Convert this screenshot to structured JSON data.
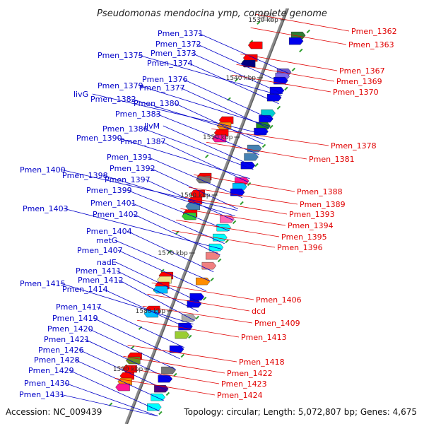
{
  "title": "Pseudomonas mendocina ymp, complete genome",
  "footer": {
    "accession": "Accession: NC_009439",
    "topology": "Topology: circular; Length: 5,072,807 bp; Genes: 4,675"
  },
  "colors": {
    "background": "#ffffff",
    "backbone": "#8a8a8a",
    "left_label": "#0000c8",
    "right_label": "#e00000",
    "forward_gene": "#0000ee",
    "reverse_gene": "#ee0000",
    "intergenic_marker": "#2e9e2e"
  },
  "axis_ticks": [
    "1530 kbp",
    "1540 kbp",
    "1550 kbp",
    "1560 kbp",
    "1570 kbp",
    "1580 kbp",
    "1590 kbp"
  ],
  "left_genes": [
    "Pmen_1371",
    "Pmen_1372",
    "Pmen_1375",
    "Pmen_1373",
    "Pmen_1374",
    "Pmen_1376",
    "Pmen_1379",
    "Pmen_1377",
    "livG",
    "Pmen_1382",
    "Pmen_1380",
    "Pmen_1383",
    "livM",
    "Pmen_1386",
    "Pmen_1390",
    "Pmen_1387",
    "Pmen_1391",
    "Pmen_1392",
    "Pmen_1400",
    "Pmen_1398",
    "Pmen_1397",
    "Pmen_1399",
    "Pmen_1401",
    "Pmen_1403",
    "Pmen_1402",
    "Pmen_1404",
    "metG",
    "Pmen_1407",
    "nadE",
    "Pmen_1411",
    "Pmen_1412",
    "Pmen_1415",
    "Pmen_1414",
    "Pmen_1417",
    "Pmen_1419",
    "Pmen_1420",
    "Pmen_1421",
    "Pmen_1426",
    "Pmen_1428",
    "Pmen_1429",
    "Pmen_1430",
    "Pmen_1431"
  ],
  "right_genes": [
    "Pmen_1362",
    "Pmen_1363",
    "Pmen_1367",
    "Pmen_1369",
    "Pmen_1370",
    "Pmen_1378",
    "Pmen_1381",
    "Pmen_1388",
    "Pmen_1389",
    "Pmen_1393",
    "Pmen_1394",
    "Pmen_1395",
    "Pmen_1396",
    "Pmen_1406",
    "dcd",
    "Pmen_1409",
    "Pmen_1413",
    "Pmen_1418",
    "Pmen_1422",
    "Pmen_1423",
    "Pmen_1424"
  ]
}
